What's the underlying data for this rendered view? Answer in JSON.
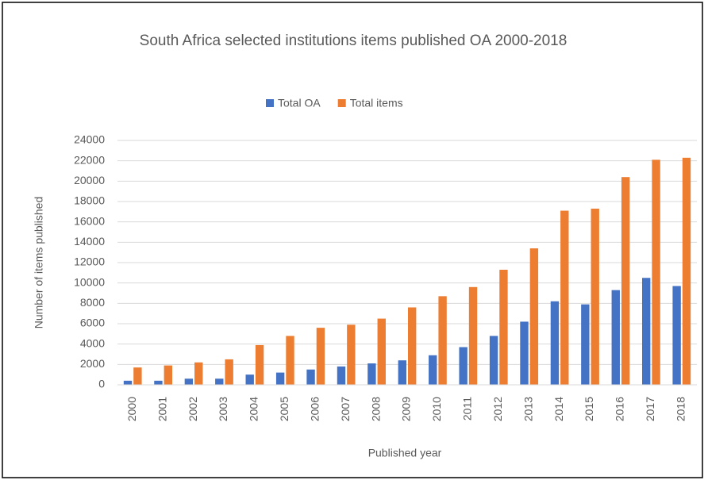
{
  "chart_data": {
    "type": "bar",
    "title": "South Africa selected institutions items published OA 2000-2018",
    "x_label": "Published year",
    "y_label": "Number of items published",
    "categories": [
      "2000",
      "2001",
      "2002",
      "2003",
      "2004",
      "2005",
      "2006",
      "2007",
      "2008",
      "2009",
      "2010",
      "2011",
      "2012",
      "2013",
      "2014",
      "2015",
      "2016",
      "2017",
      "2018"
    ],
    "series": [
      {
        "name": "Total OA",
        "color": "#4472c4",
        "values": [
          400,
          400,
          600,
          600,
          1000,
          1200,
          1500,
          1800,
          2100,
          2400,
          2900,
          3700,
          4800,
          6200,
          8200,
          7900,
          9300,
          10500,
          9700
        ]
      },
      {
        "name": "Total items",
        "color": "#ed7d31",
        "values": [
          1700,
          1900,
          2200,
          2500,
          3900,
          4800,
          5600,
          5900,
          6500,
          7600,
          8700,
          9600,
          11300,
          13400,
          17100,
          17300,
          20400,
          22100,
          22300
        ]
      }
    ],
    "ylim": [
      0,
      24000
    ],
    "yticks": [
      0,
      2000,
      4000,
      6000,
      8000,
      10000,
      12000,
      14000,
      16000,
      18000,
      20000,
      22000,
      24000
    ],
    "grid": true,
    "legend": "top"
  }
}
